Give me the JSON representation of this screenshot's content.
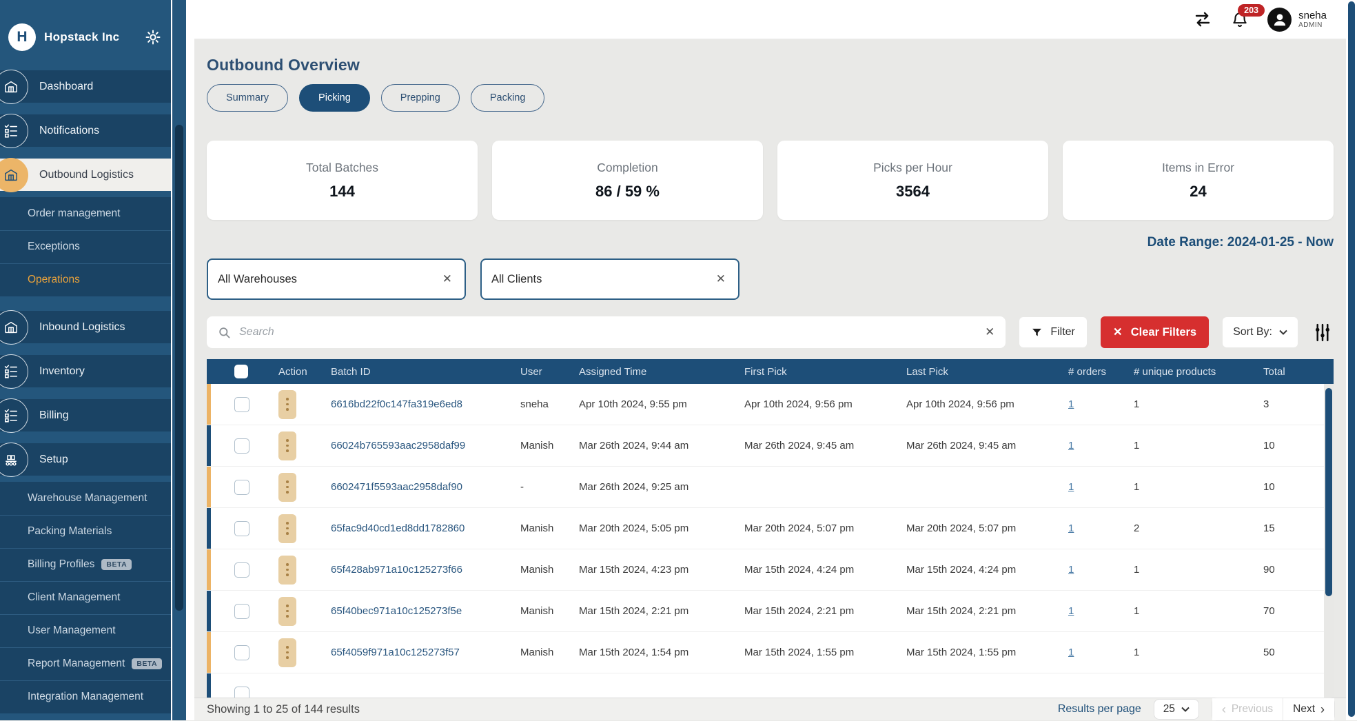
{
  "sidebar": {
    "company": "Hopstack Inc",
    "logo_letter": "H",
    "items": [
      {
        "label": "Dashboard",
        "type": "main",
        "icon": "warehouse"
      },
      {
        "label": "Notifications",
        "type": "main",
        "icon": "checklist"
      },
      {
        "label": "Outbound Logistics",
        "type": "main",
        "icon": "warehouse",
        "active": true
      },
      {
        "label": "Order management",
        "type": "sub"
      },
      {
        "label": "Exceptions",
        "type": "sub"
      },
      {
        "label": "Operations",
        "type": "sub",
        "active": true
      },
      {
        "label": "Inbound Logistics",
        "type": "main",
        "icon": "warehouse"
      },
      {
        "label": "Inventory",
        "type": "main",
        "icon": "checklist"
      },
      {
        "label": "Billing",
        "type": "main",
        "icon": "checklist"
      },
      {
        "label": "Setup",
        "type": "main",
        "icon": "conveyor"
      },
      {
        "label": "Warehouse Management",
        "type": "sub"
      },
      {
        "label": "Packing Materials",
        "type": "sub"
      },
      {
        "label": "Billing Profiles",
        "type": "sub",
        "badge": "BETA"
      },
      {
        "label": "Client Management",
        "type": "sub"
      },
      {
        "label": "User Management",
        "type": "sub"
      },
      {
        "label": "Report Management",
        "type": "sub",
        "badge": "BETA"
      },
      {
        "label": "Integration Management",
        "type": "sub"
      }
    ]
  },
  "header": {
    "notification_count": "203",
    "user_name": "sneha",
    "user_role": "ADMIN"
  },
  "page": {
    "title": "Outbound Overview",
    "tabs": [
      {
        "label": "Summary",
        "active": false
      },
      {
        "label": "Picking",
        "active": true
      },
      {
        "label": "Prepping",
        "active": false
      },
      {
        "label": "Packing",
        "active": false
      }
    ],
    "stats": [
      {
        "label": "Total Batches",
        "value": "144"
      },
      {
        "label": "Completion",
        "value": "86 / 59 %"
      },
      {
        "label": "Picks per Hour",
        "value": "3564"
      },
      {
        "label": "Items in Error",
        "value": "24"
      }
    ],
    "date_range": "Date Range: 2024-01-25 - Now",
    "filters": {
      "warehouse_value": "All Warehouses",
      "client_value": "All Clients",
      "search_placeholder": "Search",
      "filter_label": "Filter",
      "clear_label": "Clear Filters",
      "sort_label": "Sort By:",
      "close_glyph": "✕"
    },
    "table": {
      "columns": [
        "",
        "Action",
        "Batch ID",
        "User",
        "Assigned Time",
        "First Pick",
        "Last Pick",
        "# orders",
        "# unique products",
        "Total"
      ],
      "rows": [
        {
          "strip": "yellow",
          "batch_id": "6616bd22f0c147fa319e6ed8",
          "user": "sneha",
          "assigned": "Apr 10th 2024, 9:55 pm",
          "first": "Apr 10th 2024, 9:56 pm",
          "last": "Apr 10th 2024, 9:56 pm",
          "orders": "1",
          "unique": "1",
          "total": "3"
        },
        {
          "strip": "navy",
          "batch_id": "66024b765593aac2958daf99",
          "user": "Manish",
          "assigned": "Mar 26th 2024, 9:44 am",
          "first": "Mar 26th 2024, 9:45 am",
          "last": "Mar 26th 2024, 9:45 am",
          "orders": "1",
          "unique": "1",
          "total": "10"
        },
        {
          "strip": "yellow",
          "batch_id": "6602471f5593aac2958daf90",
          "user": "-",
          "assigned": "Mar 26th 2024, 9:25 am",
          "first": "",
          "last": "",
          "orders": "1",
          "unique": "1",
          "total": "10"
        },
        {
          "strip": "navy",
          "batch_id": "65fac9d40cd1ed8dd1782860",
          "user": "Manish",
          "assigned": "Mar 20th 2024, 5:05 pm",
          "first": "Mar 20th 2024, 5:07 pm",
          "last": "Mar 20th 2024, 5:07 pm",
          "orders": "1",
          "unique": "2",
          "total": "15"
        },
        {
          "strip": "yellow",
          "batch_id": "65f428ab971a10c125273f66",
          "user": "Manish",
          "assigned": "Mar 15th 2024, 4:23 pm",
          "first": "Mar 15th 2024, 4:24 pm",
          "last": "Mar 15th 2024, 4:24 pm",
          "orders": "1",
          "unique": "1",
          "total": "90"
        },
        {
          "strip": "navy",
          "batch_id": "65f40bec971a10c125273f5e",
          "user": "Manish",
          "assigned": "Mar 15th 2024, 2:21 pm",
          "first": "Mar 15th 2024, 2:21 pm",
          "last": "Mar 15th 2024, 2:21 pm",
          "orders": "1",
          "unique": "1",
          "total": "70"
        },
        {
          "strip": "yellow",
          "batch_id": "65f4059f971a10c125273f57",
          "user": "Manish",
          "assigned": "Mar 15th 2024, 1:54 pm",
          "first": "Mar 15th 2024, 1:55 pm",
          "last": "Mar 15th 2024, 1:55 pm",
          "orders": "1",
          "unique": "1",
          "total": "50"
        }
      ]
    },
    "pagination": {
      "showing": "Showing 1 to 25 of 144 results",
      "results_per_page_label": "Results per page",
      "page_size": "25",
      "prev_label": "Previous",
      "next_label": "Next",
      "prev_glyph": "‹",
      "next_glyph": "›"
    }
  },
  "colors": {
    "navy": "#1d4e78",
    "sidebar_bg": "#24567c",
    "sidebar_item_bg": "#1a4364",
    "accent_orange": "#ecb568",
    "danger_red": "#d62f2f",
    "badge_red": "#bf2426",
    "strip_yellow": "#ecb365",
    "link_blue": "#4a7ba6"
  }
}
